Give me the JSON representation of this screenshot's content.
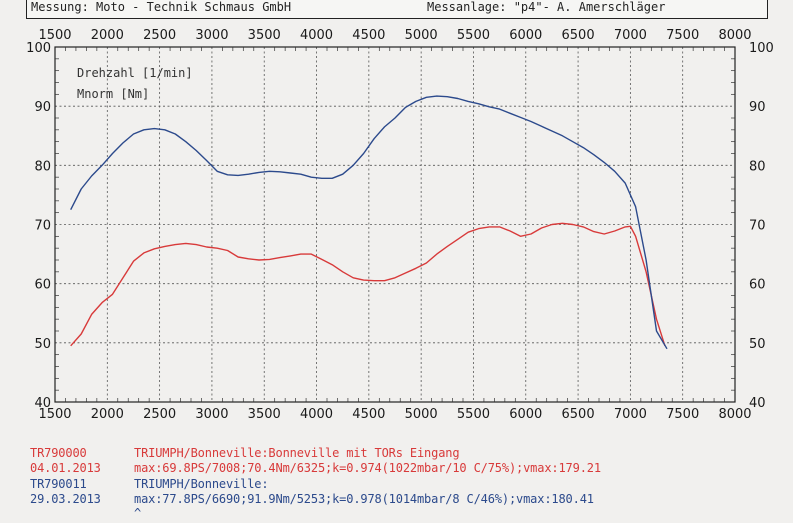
{
  "header": {
    "left": "Messung: Moto - Technik Schmaus GmbH",
    "right": "Messanlage: \"p4\"- A. Amerschläger"
  },
  "chart_data": {
    "type": "line",
    "xlim": [
      1500,
      8000
    ],
    "ylim": [
      40,
      100
    ],
    "x_ticks": [
      1500,
      2000,
      2500,
      3000,
      3500,
      4000,
      4500,
      5000,
      5500,
      6000,
      6500,
      7000,
      7500,
      8000
    ],
    "y_ticks": [
      40,
      50,
      60,
      70,
      80,
      90,
      100
    ],
    "grid": true,
    "legend": [
      "Drehzahl [1/min]",
      "Mnorm [Nm]"
    ],
    "series": [
      {
        "name": "TR790000",
        "color": "#d83a3a",
        "x": [
          1650,
          1750,
          1850,
          1950,
          2050,
          2150,
          2250,
          2350,
          2450,
          2550,
          2650,
          2750,
          2850,
          2950,
          3050,
          3150,
          3250,
          3350,
          3450,
          3550,
          3650,
          3750,
          3850,
          3950,
          4050,
          4150,
          4250,
          4350,
          4450,
          4550,
          4650,
          4750,
          4850,
          4950,
          5050,
          5150,
          5250,
          5350,
          5450,
          5550,
          5650,
          5750,
          5850,
          5950,
          6050,
          6150,
          6250,
          6350,
          6450,
          6550,
          6650,
          6750,
          6850,
          6950,
          7000,
          7050,
          7150,
          7250,
          7330
        ],
        "y": [
          49.5,
          51.5,
          54.8,
          56.8,
          58.2,
          61.0,
          63.8,
          65.2,
          65.9,
          66.3,
          66.6,
          66.8,
          66.6,
          66.2,
          66.0,
          65.6,
          64.5,
          64.2,
          64.0,
          64.1,
          64.4,
          64.7,
          65.0,
          65.0,
          64.1,
          63.2,
          62.0,
          61.0,
          60.6,
          60.5,
          60.5,
          61.0,
          61.8,
          62.6,
          63.5,
          65.0,
          66.3,
          67.5,
          68.7,
          69.3,
          69.6,
          69.6,
          68.9,
          68.0,
          68.4,
          69.4,
          70.0,
          70.2,
          70.0,
          69.6,
          68.8,
          68.4,
          68.9,
          69.6,
          69.7,
          68.0,
          62.0,
          54.0,
          49.5
        ]
      },
      {
        "name": "TR790011",
        "color": "#2c4a8c",
        "x": [
          1650,
          1750,
          1850,
          1950,
          2050,
          2150,
          2250,
          2350,
          2450,
          2550,
          2650,
          2750,
          2850,
          2950,
          3050,
          3150,
          3250,
          3350,
          3450,
          3550,
          3650,
          3750,
          3850,
          3950,
          4050,
          4150,
          4250,
          4350,
          4450,
          4550,
          4650,
          4750,
          4850,
          4950,
          5050,
          5150,
          5250,
          5350,
          5450,
          5550,
          5650,
          5750,
          5850,
          5950,
          6050,
          6150,
          6250,
          6350,
          6450,
          6550,
          6650,
          6750,
          6850,
          6950,
          7050,
          7150,
          7250,
          7350
        ],
        "y": [
          72.5,
          76.0,
          78.2,
          80.0,
          82.0,
          83.8,
          85.3,
          86.0,
          86.2,
          86.0,
          85.3,
          84.0,
          82.5,
          80.8,
          79.0,
          78.4,
          78.3,
          78.5,
          78.8,
          79.0,
          78.9,
          78.7,
          78.5,
          78.0,
          77.8,
          77.8,
          78.5,
          80.0,
          82.0,
          84.5,
          86.5,
          88.0,
          89.8,
          90.8,
          91.5,
          91.7,
          91.6,
          91.3,
          90.8,
          90.4,
          89.9,
          89.5,
          88.8,
          88.1,
          87.4,
          86.6,
          85.8,
          85.0,
          84.0,
          83.0,
          81.8,
          80.5,
          79.0,
          77.0,
          73.0,
          64.0,
          52.0,
          49.0
        ]
      }
    ]
  },
  "footer": {
    "run1": {
      "id": "TR790000",
      "date": "04.01.2013",
      "desc": "TRIUMPH/Bonneville:Bonneville mit TORs Eingang",
      "stats": "max:69.8PS/7008;70.4Nm/6325;k=0.974(1022mbar/10 C/75%);vmax:179.21"
    },
    "run2": {
      "id": "TR790011",
      "date": "29.03.2013",
      "desc": "TRIUMPH/Bonneville:",
      "stats": "max:77.8PS/6690;91.9Nm/5253;k=0.978(1014mbar/8 C/46%);vmax:180.41",
      "mark": "^"
    }
  }
}
